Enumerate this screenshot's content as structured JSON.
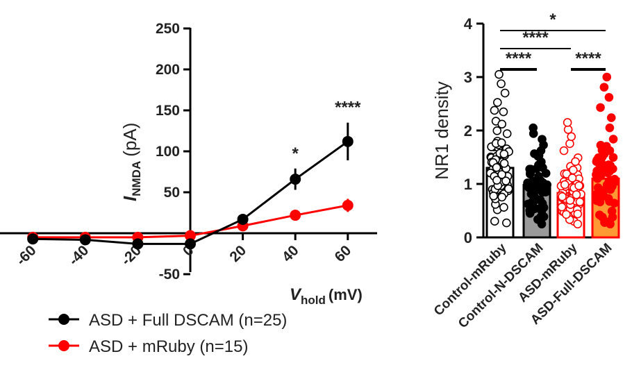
{
  "chart_data": [
    {
      "type": "line",
      "title": "",
      "ylabel_italic": "I",
      "ylabel_sub": "NMDA",
      "ylabel_unit": "(pA)",
      "xlabel_italic": "V",
      "xlabel_sub": "hold",
      "xlabel_unit": "(mV)",
      "xlim": [
        -60,
        60
      ],
      "ylim": [
        -50,
        250
      ],
      "x_ticks": [
        "-60",
        "-40",
        "-20",
        "0",
        "20",
        "40",
        "60"
      ],
      "y_ticks": [
        "250",
        "200",
        "150",
        "100",
        "50",
        "-50"
      ],
      "grid": false,
      "legend_position": "bottom-left",
      "series": [
        {
          "name": "ASD + Full DSCAM (n=25)",
          "color": "#000000",
          "x": [
            -60,
            -40,
            -20,
            0,
            20,
            40,
            60
          ],
          "y": [
            -7,
            -8,
            -13,
            -13,
            17,
            66,
            112
          ],
          "error": [
            2,
            2,
            3,
            3,
            4,
            13,
            23
          ]
        },
        {
          "name": "ASD + mRuby (n=15)",
          "color": "#ff0000",
          "x": [
            -60,
            -40,
            -20,
            0,
            20,
            40,
            60
          ],
          "y": [
            -5,
            -5,
            -5,
            -3,
            9,
            22,
            34
          ],
          "error": [
            2,
            2,
            2,
            2,
            3,
            4,
            8
          ]
        }
      ],
      "annotations": [
        {
          "x": 40,
          "text": "*"
        },
        {
          "x": 60,
          "text": "****"
        }
      ]
    },
    {
      "type": "bar",
      "title": "",
      "ylabel": "NR1 density",
      "ylim": [
        0,
        4
      ],
      "y_ticks": [
        "0",
        "1",
        "2",
        "3",
        "4"
      ],
      "grid": false,
      "categories": [
        "Control-mRuby",
        "Control-N-DSCAM",
        "ASD-mRuby",
        "ASD-Full-DSCAM"
      ],
      "values": [
        1.3,
        0.98,
        0.83,
        1.1
      ],
      "bar_colors": [
        "#ffffff",
        "#9a9a9a",
        "#ffffff",
        "#ff9933"
      ],
      "bar_edge_colors": [
        "#000000",
        "#000000",
        "#ff0000",
        "#ff0000"
      ],
      "point_style": [
        "open",
        "filled",
        "open",
        "filled"
      ],
      "point_colors": [
        "#000000",
        "#000000",
        "#ff0000",
        "#ff0000"
      ],
      "comparisons": [
        {
          "from": 0,
          "to": 3,
          "text": "*"
        },
        {
          "from": 0,
          "to": 2,
          "text": "****"
        },
        {
          "from": 0,
          "to": 1,
          "text": "****"
        },
        {
          "from": 2,
          "to": 3,
          "text": "****"
        }
      ]
    }
  ]
}
